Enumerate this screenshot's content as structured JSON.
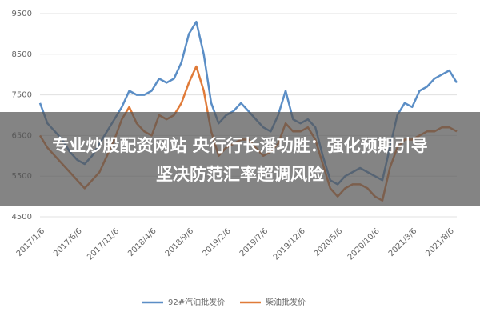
{
  "chart_data": {
    "type": "line",
    "categories": [
      "2017/1/6",
      null,
      null,
      null,
      null,
      "2017/6/6",
      null,
      null,
      null,
      null,
      "2017/11/6",
      null,
      null,
      null,
      null,
      "2018/4/6",
      null,
      null,
      null,
      null,
      "2018/9/6",
      null,
      null,
      null,
      null,
      "2019/2/6",
      null,
      null,
      null,
      null,
      "2019/7/6",
      null,
      null,
      null,
      null,
      "2019/12/6",
      null,
      null,
      null,
      null,
      "2020/5/6",
      null,
      null,
      null,
      null,
      "2020/10/6",
      null,
      null,
      null,
      null,
      "2021/3/6",
      null,
      null,
      null,
      null,
      "2021/8/6",
      null
    ],
    "series": [
      {
        "name": "92#汽油批发价",
        "color": "#5b8ec6",
        "values": [
          7300,
          6800,
          6600,
          6400,
          6100,
          5900,
          5800,
          6000,
          6300,
          6600,
          6900,
          7200,
          7600,
          7500,
          7500,
          7600,
          7900,
          7800,
          7900,
          8300,
          9000,
          9300,
          8500,
          7300,
          6800,
          7000,
          7100,
          7300,
          7100,
          6900,
          6700,
          6600,
          7000,
          7600,
          6900,
          6800,
          6900,
          6700,
          6000,
          5400,
          5300,
          5500,
          5600,
          5700,
          5600,
          5500,
          5400,
          6200,
          7000,
          7300,
          7200,
          7600,
          7700,
          7900,
          8000,
          8100,
          7800
        ]
      },
      {
        "name": "柴油批发价",
        "color": "#e07b39",
        "values": [
          6500,
          6200,
          6000,
          5800,
          5600,
          5400,
          5200,
          5400,
          5600,
          6000,
          6400,
          6900,
          7200,
          6800,
          6600,
          6500,
          7000,
          6900,
          7000,
          7300,
          7800,
          8200,
          7600,
          6600,
          6000,
          6200,
          6300,
          6400,
          6400,
          6200,
          6000,
          6100,
          6300,
          6800,
          6600,
          6600,
          6700,
          6400,
          5800,
          5200,
          5000,
          5200,
          5300,
          5300,
          5200,
          5000,
          4900,
          5700,
          6200,
          6400,
          6400,
          6500,
          6600,
          6600,
          6700,
          6700,
          6600
        ]
      }
    ],
    "ylim": [
      4500,
      9500
    ],
    "yticks": [
      4500,
      5500,
      6500,
      7500,
      8500,
      9500
    ],
    "grid": true,
    "legend": "bottom"
  },
  "overlay_text": [
    "专业炒股配资网站 央行行长潘功胜：强化预期引导",
    "坚决防范汇率超调风险"
  ]
}
